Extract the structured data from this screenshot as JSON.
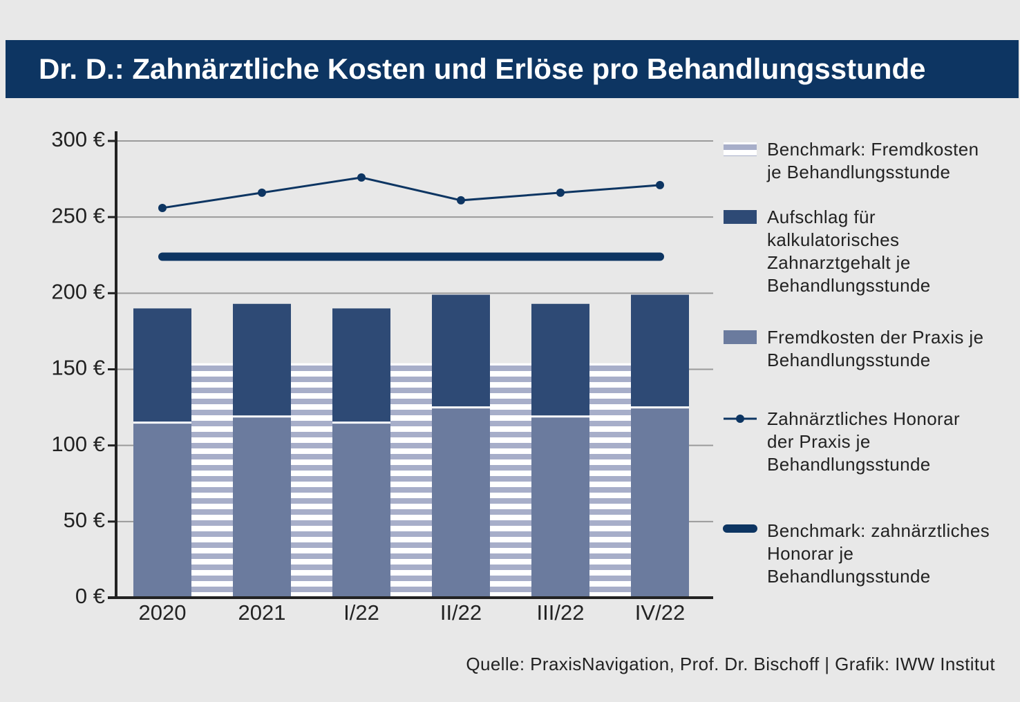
{
  "chart_data": {
    "type": "bar",
    "title": "Dr. D.: Zahnärztliche Kosten und Erlöse pro Behandlungsstunde",
    "source": "Quelle: PraxisNavigation, Prof. Dr. Bischoff | Grafik: IWW Institut",
    "categories": [
      "2020",
      "2021",
      "I/22",
      "II/22",
      "III/22",
      "IV/22"
    ],
    "series": [
      {
        "name": "Benchmark: Fremdkosten je Behandlungsstunde",
        "color": "#a7aec9",
        "style": "striped",
        "values": [
          154,
          154,
          154,
          154,
          154,
          154
        ]
      },
      {
        "name": "Aufschlag für kalkulatorisches Zahnarztgehalt je Behandlungsstunde",
        "color": "#2e4a75",
        "style": "stack",
        "values": [
          75,
          74,
          75,
          74,
          74,
          74
        ]
      },
      {
        "name": "Fremdkosten der Praxis je Behandlungsstunde",
        "color": "#6b7b9e",
        "style": "stack",
        "values": [
          115,
          119,
          115,
          125,
          119,
          125
        ]
      },
      {
        "name": "Zahnärztliches Honorar der Praxis je Behandlungsstunde",
        "color": "#0d3562",
        "style": "line",
        "values": [
          256,
          266,
          276,
          261,
          266,
          271
        ]
      },
      {
        "name": "Benchmark: zahnärztliches Honorar je Behandlungsstunde",
        "color": "#0d3562",
        "style": "hline",
        "values": [
          224,
          224,
          224,
          224,
          224,
          224
        ]
      }
    ],
    "ylim": [
      0,
      300
    ],
    "yticks": [
      {
        "value": 0,
        "label": "0 €"
      },
      {
        "value": 50,
        "label": "50 €"
      },
      {
        "value": 100,
        "label": "100 €"
      },
      {
        "value": 150,
        "label": "150 €"
      },
      {
        "value": 200,
        "label": "200 €"
      },
      {
        "value": 250,
        "label": "250 €"
      },
      {
        "value": 300,
        "label": "300 €"
      }
    ],
    "grid": true
  }
}
